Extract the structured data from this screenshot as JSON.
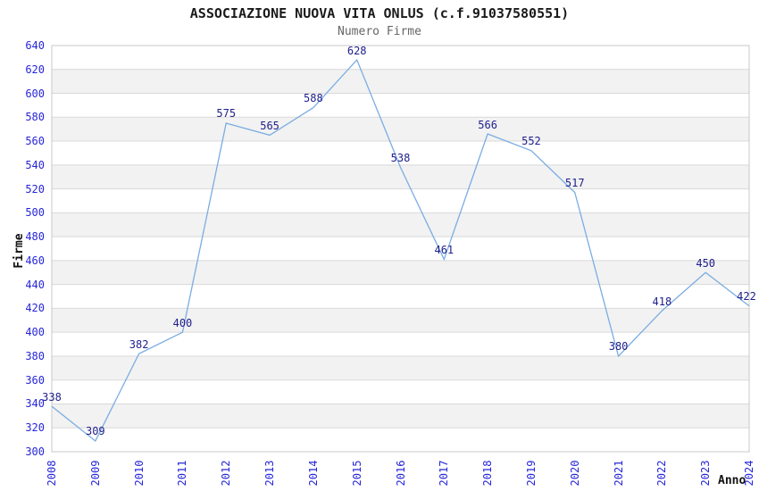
{
  "title": "ASSOCIAZIONE NUOVA VITA ONLUS (c.f.91037580551)",
  "subtitle": "Numero Firme",
  "chart_data": {
    "type": "line",
    "title": "ASSOCIAZIONE NUOVA VITA ONLUS (c.f.91037580551)",
    "subtitle": "Numero Firme",
    "x": [
      2008,
      2009,
      2010,
      2011,
      2012,
      2013,
      2014,
      2015,
      2016,
      2017,
      2018,
      2019,
      2020,
      2021,
      2022,
      2023,
      2024
    ],
    "series": [
      {
        "name": "Numero Firme",
        "values": [
          338,
          309,
          382,
          400,
          575,
          565,
          588,
          628,
          538,
          461,
          566,
          552,
          517,
          380,
          418,
          450,
          422
        ]
      }
    ],
    "xlabel": "Anno",
    "ylabel": "Firme",
    "ylim": [
      300,
      640
    ],
    "yticks": [
      300,
      320,
      340,
      360,
      380,
      400,
      420,
      440,
      460,
      480,
      500,
      520,
      540,
      560,
      580,
      600,
      620,
      640
    ],
    "grid": true,
    "alternating_bands": true,
    "point_labels_visible": true,
    "legend": "none"
  },
  "colors": {
    "background": "#ffffff",
    "line": "#7aade2",
    "tick_label": "#2626d9",
    "point_label": "#20208c",
    "title": "#1a1a1a",
    "subtitle": "#666666",
    "axis_title": "#111111",
    "band": "#f2f2f2",
    "grid": "#d9d9d9",
    "plot_border": "#c8c8c8"
  }
}
